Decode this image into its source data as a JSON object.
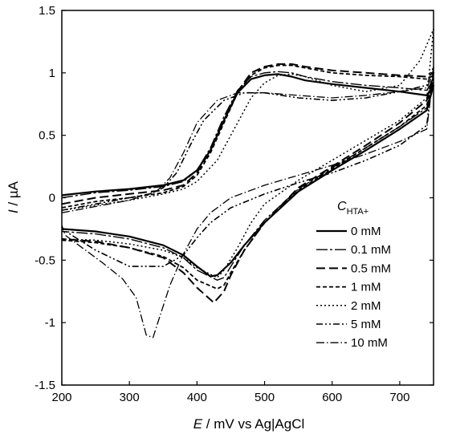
{
  "chart_data": {
    "type": "line",
    "title": "",
    "xlabel": {
      "var": "E",
      "unit": " / mV vs Ag|AgCl"
    },
    "ylabel": {
      "var": "I",
      "unit": " / µA"
    },
    "xlim": [
      200,
      750
    ],
    "ylim": [
      -1.5,
      1.5
    ],
    "xticks": [
      200,
      300,
      400,
      500,
      600,
      700
    ],
    "yticks": [
      -1.5,
      -1,
      -0.5,
      0,
      0.5,
      1,
      1.5
    ],
    "xtick_labels": [
      "200",
      "300",
      "400",
      "500",
      "600",
      "700"
    ],
    "ytick_labels": [
      "-1.5",
      "-1",
      "-0.5",
      "0",
      "0.5",
      "1",
      "1.5"
    ],
    "grid": false,
    "legend": {
      "title_main": "C",
      "title_sub": "HTA+",
      "placement": "right"
    },
    "series": [
      {
        "name": "0 mM",
        "dash": "",
        "width": 2.2,
        "x": [
          200,
          250,
          300,
          350,
          380,
          400,
          420,
          440,
          460,
          480,
          500,
          520,
          540,
          560,
          600,
          650,
          700,
          740,
          750,
          740,
          700,
          650,
          600,
          550,
          500,
          470,
          450,
          430,
          420,
          400,
          380,
          350,
          300,
          250,
          200
        ],
        "y": [
          0.02,
          0.05,
          0.07,
          0.1,
          0.14,
          0.22,
          0.38,
          0.62,
          0.84,
          0.95,
          0.98,
          0.99,
          0.97,
          0.94,
          0.91,
          0.88,
          0.85,
          0.82,
          0.9,
          0.7,
          0.55,
          0.38,
          0.22,
          0.05,
          -0.2,
          -0.38,
          -0.52,
          -0.62,
          -0.63,
          -0.55,
          -0.46,
          -0.38,
          -0.31,
          -0.27,
          -0.25
        ]
      },
      {
        "name": "0.1 mM",
        "dash": "14 3 3 3",
        "width": 1.4,
        "x": [
          200,
          250,
          300,
          350,
          380,
          400,
          420,
          440,
          460,
          480,
          500,
          520,
          540,
          560,
          600,
          650,
          700,
          740,
          750,
          740,
          700,
          650,
          600,
          550,
          500,
          470,
          450,
          440,
          430,
          400,
          380,
          350,
          300,
          250,
          200
        ],
        "y": [
          0.0,
          0.04,
          0.06,
          0.09,
          0.13,
          0.22,
          0.4,
          0.65,
          0.86,
          0.97,
          1.0,
          1.01,
          1.0,
          0.97,
          0.93,
          0.9,
          0.88,
          0.86,
          0.95,
          0.72,
          0.57,
          0.4,
          0.24,
          0.07,
          -0.18,
          -0.38,
          -0.55,
          -0.64,
          -0.66,
          -0.58,
          -0.48,
          -0.4,
          -0.33,
          -0.29,
          -0.27
        ]
      },
      {
        "name": "0.5 mM",
        "dash": "11 5",
        "width": 2.0,
        "x": [
          200,
          250,
          300,
          350,
          380,
          400,
          420,
          440,
          460,
          480,
          500,
          520,
          540,
          560,
          600,
          650,
          700,
          740,
          750,
          740,
          700,
          650,
          600,
          550,
          500,
          470,
          450,
          440,
          425,
          400,
          380,
          350,
          300,
          250,
          200
        ],
        "y": [
          -0.05,
          0.0,
          0.03,
          0.06,
          0.1,
          0.2,
          0.38,
          0.62,
          0.85,
          1.0,
          1.05,
          1.07,
          1.07,
          1.05,
          1.02,
          1.0,
          0.98,
          0.97,
          1.0,
          0.78,
          0.6,
          0.42,
          0.25,
          0.08,
          -0.2,
          -0.42,
          -0.62,
          -0.75,
          -0.84,
          -0.72,
          -0.6,
          -0.48,
          -0.4,
          -0.35,
          -0.33
        ]
      },
      {
        "name": "1 mM",
        "dash": "5 3",
        "width": 1.8,
        "x": [
          200,
          250,
          300,
          350,
          380,
          400,
          420,
          440,
          460,
          480,
          500,
          520,
          540,
          560,
          600,
          650,
          700,
          740,
          750,
          740,
          700,
          650,
          600,
          550,
          500,
          470,
          450,
          440,
          430,
          400,
          380,
          350,
          300,
          250,
          200
        ],
        "y": [
          -0.08,
          -0.03,
          0.0,
          0.04,
          0.09,
          0.18,
          0.36,
          0.6,
          0.84,
          0.98,
          1.04,
          1.06,
          1.06,
          1.04,
          1.0,
          0.98,
          0.97,
          0.95,
          0.98,
          0.74,
          0.57,
          0.4,
          0.23,
          0.06,
          -0.2,
          -0.42,
          -0.6,
          -0.7,
          -0.73,
          -0.66,
          -0.56,
          -0.47,
          -0.4,
          -0.36,
          -0.34
        ]
      },
      {
        "name": "2 mM",
        "dash": "2 3",
        "width": 1.5,
        "x": [
          200,
          250,
          300,
          350,
          380,
          400,
          430,
          460,
          480,
          500,
          520,
          540,
          560,
          600,
          650,
          700,
          730,
          750,
          740,
          700,
          650,
          600,
          550,
          500,
          480,
          460,
          440,
          430,
          400,
          380,
          350,
          300,
          250,
          200
        ],
        "y": [
          -0.1,
          -0.06,
          -0.02,
          0.03,
          0.07,
          0.13,
          0.3,
          0.6,
          0.8,
          0.92,
          0.98,
          0.99,
          0.97,
          0.9,
          0.85,
          0.9,
          1.1,
          1.35,
          0.8,
          0.62,
          0.46,
          0.3,
          0.14,
          -0.05,
          -0.2,
          -0.4,
          -0.58,
          -0.64,
          -0.56,
          -0.48,
          -0.42,
          -0.37,
          -0.34,
          -0.33
        ]
      },
      {
        "name": "5 mM",
        "dash": "8 3 2 3 2 3",
        "width": 1.6,
        "x": [
          200,
          250,
          300,
          330,
          350,
          370,
          390,
          410,
          440,
          470,
          500,
          550,
          600,
          650,
          700,
          740,
          750,
          740,
          700,
          650,
          600,
          550,
          500,
          450,
          420,
          400,
          380,
          350,
          300,
          250,
          200
        ],
        "y": [
          -0.1,
          -0.05,
          0.0,
          0.03,
          0.08,
          0.2,
          0.42,
          0.62,
          0.78,
          0.84,
          0.84,
          0.8,
          0.78,
          0.8,
          0.85,
          0.9,
          1.05,
          0.58,
          0.42,
          0.3,
          0.2,
          0.12,
          0.03,
          -0.08,
          -0.2,
          -0.32,
          -0.46,
          -0.55,
          -0.55,
          -0.42,
          -0.25
        ]
      },
      {
        "name": "10 mM",
        "dash": "10 3 1.5 3",
        "width": 1.3,
        "x": [
          200,
          250,
          300,
          340,
          360,
          380,
          400,
          430,
          460,
          500,
          550,
          600,
          650,
          700,
          740,
          750,
          740,
          700,
          650,
          600,
          550,
          500,
          450,
          420,
          400,
          380,
          360,
          345,
          335,
          325,
          310,
          290,
          260,
          230,
          205,
          200
        ],
        "y": [
          -0.12,
          -0.07,
          -0.02,
          0.05,
          0.16,
          0.36,
          0.6,
          0.78,
          0.84,
          0.84,
          0.82,
          0.8,
          0.82,
          0.85,
          0.88,
          1.0,
          0.55,
          0.45,
          0.35,
          0.26,
          0.18,
          0.1,
          0.0,
          -0.12,
          -0.25,
          -0.45,
          -0.7,
          -0.95,
          -1.12,
          -1.1,
          -0.8,
          -0.65,
          -0.52,
          -0.4,
          -0.3,
          -0.22
        ]
      }
    ]
  }
}
